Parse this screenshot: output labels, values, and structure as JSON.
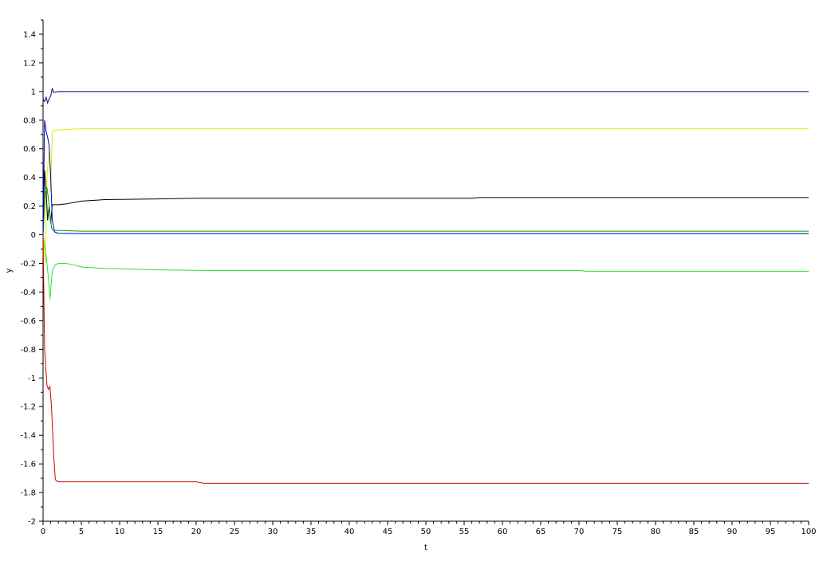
{
  "chart_data": {
    "type": "line",
    "xlabel": "t",
    "ylabel": "y",
    "xlim": [
      0,
      100
    ],
    "ylim": [
      -2,
      1.5
    ],
    "grid": false,
    "x_ticks": [
      0,
      5,
      10,
      15,
      20,
      25,
      30,
      35,
      40,
      45,
      50,
      55,
      60,
      65,
      70,
      75,
      80,
      85,
      90,
      95,
      100
    ],
    "y_ticks": [
      -2,
      -1.8,
      -1.6,
      -1.4,
      -1.2,
      -1,
      -0.8,
      -0.6,
      -0.4,
      -0.2,
      0,
      0.2,
      0.4,
      0.6,
      0.8,
      1,
      1.2,
      1.4
    ],
    "x_tick_labels": [
      "0",
      "5",
      "10",
      "15",
      "20",
      "25",
      "30",
      "35",
      "40",
      "45",
      "50",
      "55",
      "60",
      "65",
      "70",
      "75",
      "80",
      "85",
      "90",
      "95",
      "100"
    ],
    "y_tick_labels": [
      "-2",
      "-1.8",
      "-1.6",
      "-1.4",
      "-1.2",
      "-1",
      "-0.8",
      "-0.6",
      "-0.4",
      "-0.2",
      "0",
      "0.2",
      "0.4",
      "0.6",
      "0.8",
      "1",
      "1.2",
      "1.4"
    ],
    "series": [
      {
        "color": "#000080",
        "points": [
          [
            0,
            0.95
          ],
          [
            0.2,
            0.93
          ],
          [
            0.4,
            0.96
          ],
          [
            0.6,
            0.92
          ],
          [
            0.8,
            0.95
          ],
          [
            1.0,
            0.97
          ],
          [
            1.2,
            1.02
          ],
          [
            1.4,
            0.995
          ],
          [
            2,
            1.0
          ],
          [
            100,
            1.0
          ]
        ]
      },
      {
        "color": "#e8e800",
        "points": [
          [
            0,
            0.0
          ],
          [
            0.3,
            -0.2
          ],
          [
            0.5,
            0.4
          ],
          [
            0.8,
            0.6
          ],
          [
            1.0,
            0.3
          ],
          [
            1.2,
            0.72
          ],
          [
            1.6,
            0.73
          ],
          [
            3,
            0.735
          ],
          [
            5,
            0.74
          ],
          [
            100,
            0.74
          ]
        ]
      },
      {
        "color": "#000000",
        "points": [
          [
            0,
            0.0
          ],
          [
            0.2,
            0.45
          ],
          [
            0.4,
            0.3
          ],
          [
            0.6,
            0.1
          ],
          [
            0.8,
            0.2
          ],
          [
            1.0,
            0.08
          ],
          [
            1.2,
            0.21
          ],
          [
            2,
            0.21
          ],
          [
            3,
            0.215
          ],
          [
            4,
            0.225
          ],
          [
            5,
            0.235
          ],
          [
            8,
            0.245
          ],
          [
            15,
            0.25
          ],
          [
            20,
            0.255
          ],
          [
            40,
            0.255
          ],
          [
            56,
            0.255
          ],
          [
            57,
            0.26
          ],
          [
            100,
            0.26
          ]
        ]
      },
      {
        "color": "#00a000",
        "points": [
          [
            0,
            0.0
          ],
          [
            0.3,
            0.3
          ],
          [
            0.5,
            0.33
          ],
          [
            0.7,
            0.25
          ],
          [
            0.9,
            0.15
          ],
          [
            1.1,
            0.05
          ],
          [
            1.3,
            0.03
          ],
          [
            2,
            0.03
          ],
          [
            5,
            0.025
          ],
          [
            100,
            0.025
          ]
        ]
      },
      {
        "color": "#0000cc",
        "points": [
          [
            0,
            0.0
          ],
          [
            0.2,
            0.8
          ],
          [
            0.4,
            0.72
          ],
          [
            0.6,
            0.68
          ],
          [
            0.8,
            0.62
          ],
          [
            1.0,
            0.4
          ],
          [
            1.2,
            0.1
          ],
          [
            1.5,
            0.02
          ],
          [
            2,
            0.01
          ],
          [
            5,
            0.008
          ],
          [
            100,
            0.008
          ]
        ]
      },
      {
        "color": "#33dd33",
        "points": [
          [
            0,
            0.0
          ],
          [
            0.4,
            -0.15
          ],
          [
            0.7,
            -0.3
          ],
          [
            0.9,
            -0.45
          ],
          [
            1.2,
            -0.25
          ],
          [
            1.6,
            -0.21
          ],
          [
            2,
            -0.2
          ],
          [
            3,
            -0.2
          ],
          [
            4,
            -0.21
          ],
          [
            5,
            -0.225
          ],
          [
            8,
            -0.235
          ],
          [
            15,
            -0.245
          ],
          [
            22,
            -0.25
          ],
          [
            70,
            -0.25
          ],
          [
            71,
            -0.255
          ],
          [
            100,
            -0.255
          ]
        ]
      },
      {
        "color": "#cc0000",
        "points": [
          [
            0,
            0.0
          ],
          [
            0.2,
            -0.8
          ],
          [
            0.5,
            -1.05
          ],
          [
            0.7,
            -1.08
          ],
          [
            0.9,
            -1.06
          ],
          [
            1.1,
            -1.2
          ],
          [
            1.4,
            -1.55
          ],
          [
            1.6,
            -1.71
          ],
          [
            2,
            -1.725
          ],
          [
            20,
            -1.725
          ],
          [
            21,
            -1.735
          ],
          [
            100,
            -1.735
          ]
        ]
      }
    ]
  }
}
